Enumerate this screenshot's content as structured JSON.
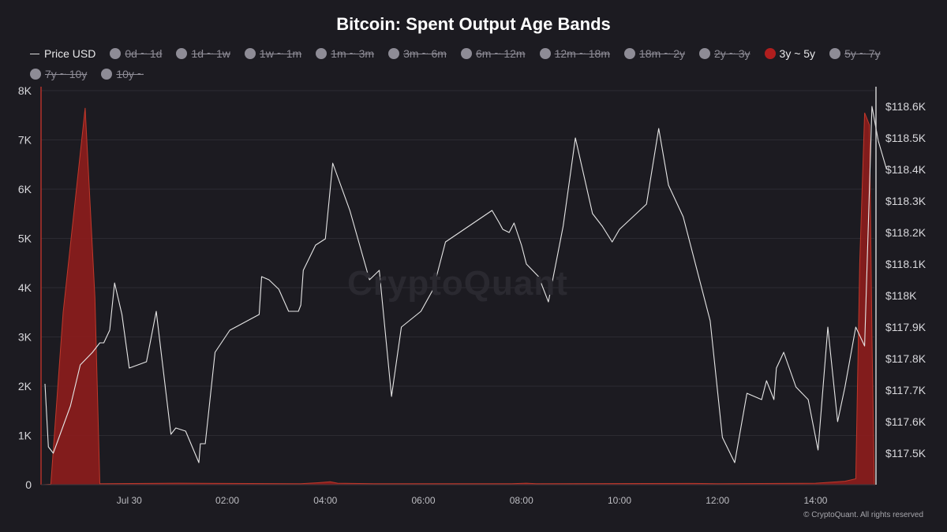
{
  "title": "Bitcoin: Spent Output Age Bands",
  "watermark": "CryptoQuant",
  "copyright": "© CryptoQuant. All rights reserved",
  "legend": [
    {
      "label": "Price USD",
      "kind": "line",
      "active": true
    },
    {
      "label": "0d ~ 1d",
      "kind": "dot",
      "active": false
    },
    {
      "label": "1d ~ 1w",
      "kind": "dot",
      "active": false
    },
    {
      "label": "1w ~ 1m",
      "kind": "dot",
      "active": false
    },
    {
      "label": "1m ~ 3m",
      "kind": "dot",
      "active": false
    },
    {
      "label": "3m ~ 6m",
      "kind": "dot",
      "active": false
    },
    {
      "label": "6m ~ 12m",
      "kind": "dot",
      "active": false
    },
    {
      "label": "12m ~ 18m",
      "kind": "dot",
      "active": false
    },
    {
      "label": "18m ~ 2y",
      "kind": "dot",
      "active": false
    },
    {
      "label": "2y ~ 3y",
      "kind": "dot",
      "active": false
    },
    {
      "label": "3y ~ 5y",
      "kind": "dot",
      "active": true,
      "color": "#b01e1e"
    },
    {
      "label": "5y ~ 7y",
      "kind": "dot",
      "active": false
    },
    {
      "label": "7y ~ 10y",
      "kind": "dot",
      "active": false
    },
    {
      "label": "10y ~",
      "kind": "dot",
      "active": false
    }
  ],
  "colors": {
    "background": "#1c1b21",
    "price_line": "#e6e6e6",
    "area_fill": "#8b1c1c",
    "area_stroke": "#c0392b",
    "grid": "#2c2b32",
    "axis": "#cfcfcf"
  },
  "chart_data": {
    "type": "line",
    "title": "Bitcoin: Spent Output Age Bands",
    "x_unit": "hours since Jul 30 00:00",
    "xlim": [
      -1.8,
      15.2
    ],
    "x_ticks": [
      {
        "value": 0,
        "label": "Jul 30"
      },
      {
        "value": 2,
        "label": "02:00"
      },
      {
        "value": 4,
        "label": "04:00"
      },
      {
        "value": 6,
        "label": "06:00"
      },
      {
        "value": 8,
        "label": "08:00"
      },
      {
        "value": 10,
        "label": "10:00"
      },
      {
        "value": 12,
        "label": "12:00"
      },
      {
        "value": 14,
        "label": "14:00"
      }
    ],
    "y_left": {
      "min": 0,
      "max": 8000,
      "ticks": [
        "0",
        "1K",
        "2K",
        "3K",
        "4K",
        "5K",
        "6K",
        "7K",
        "8K"
      ]
    },
    "y_right": {
      "min": 117400,
      "max": 118650,
      "ticks": [
        {
          "value": 117500,
          "label": "$117.5K"
        },
        {
          "value": 117600,
          "label": "$117.6K"
        },
        {
          "value": 117700,
          "label": "$117.7K"
        },
        {
          "value": 117800,
          "label": "$117.8K"
        },
        {
          "value": 117900,
          "label": "$117.9K"
        },
        {
          "value": 118000,
          "label": "$118K"
        },
        {
          "value": 118100,
          "label": "$118.1K"
        },
        {
          "value": 118200,
          "label": "$118.2K"
        },
        {
          "value": 118300,
          "label": "$118.3K"
        },
        {
          "value": 118400,
          "label": "$118.4K"
        },
        {
          "value": 118500,
          "label": "$118.5K"
        },
        {
          "value": 118600,
          "label": "$118.6K"
        }
      ]
    },
    "grid": true,
    "series": [
      {
        "name": "3y ~ 5y",
        "axis": "left",
        "kind": "area",
        "points": [
          [
            -1.75,
            0
          ],
          [
            -1.6,
            10
          ],
          [
            -1.35,
            3500
          ],
          [
            -0.9,
            7650
          ],
          [
            -0.7,
            3800
          ],
          [
            -0.6,
            20
          ],
          [
            1.0,
            30
          ],
          [
            3.5,
            20
          ],
          [
            3.85,
            40
          ],
          [
            4.1,
            60
          ],
          [
            4.25,
            30
          ],
          [
            5.0,
            20
          ],
          [
            7.8,
            20
          ],
          [
            8.1,
            30
          ],
          [
            8.3,
            20
          ],
          [
            11.5,
            25
          ],
          [
            12.0,
            20
          ],
          [
            14.0,
            30
          ],
          [
            14.6,
            70
          ],
          [
            14.82,
            120
          ],
          [
            14.9,
            4500
          ],
          [
            15.0,
            7550
          ],
          [
            15.1,
            7300
          ],
          [
            15.15,
            3000
          ],
          [
            15.2,
            0
          ]
        ]
      },
      {
        "name": "Price USD",
        "axis": "right",
        "kind": "line",
        "points": [
          [
            -1.72,
            117.72
          ],
          [
            -1.65,
            117.52
          ],
          [
            -1.55,
            117.5
          ],
          [
            -1.2,
            117.65
          ],
          [
            -1.0,
            117.78
          ],
          [
            -0.75,
            117.82
          ],
          [
            -0.6,
            117.85
          ],
          [
            -0.52,
            117.85
          ],
          [
            -0.4,
            117.89
          ],
          [
            -0.3,
            118.04
          ],
          [
            -0.15,
            117.94
          ],
          [
            0.0,
            117.77
          ],
          [
            0.35,
            117.79
          ],
          [
            0.55,
            117.95
          ],
          [
            0.85,
            117.56
          ],
          [
            0.95,
            117.58
          ],
          [
            1.15,
            117.57
          ],
          [
            1.42,
            117.47
          ],
          [
            1.45,
            117.53
          ],
          [
            1.55,
            117.53
          ],
          [
            1.75,
            117.82
          ],
          [
            2.05,
            117.89
          ],
          [
            2.65,
            117.94
          ],
          [
            2.7,
            118.06
          ],
          [
            2.85,
            118.05
          ],
          [
            3.05,
            118.02
          ],
          [
            3.25,
            117.95
          ],
          [
            3.45,
            117.95
          ],
          [
            3.5,
            117.97
          ],
          [
            3.55,
            118.08
          ],
          [
            3.8,
            118.16
          ],
          [
            4.0,
            118.18
          ],
          [
            4.15,
            118.42
          ],
          [
            4.5,
            118.27
          ],
          [
            4.9,
            118.05
          ],
          [
            5.1,
            118.08
          ],
          [
            5.35,
            117.68
          ],
          [
            5.55,
            117.9
          ],
          [
            5.95,
            117.95
          ],
          [
            6.2,
            118.02
          ],
          [
            6.45,
            118.17
          ],
          [
            7.4,
            118.27
          ],
          [
            7.55,
            118.23
          ],
          [
            7.62,
            118.21
          ],
          [
            7.75,
            118.2
          ],
          [
            7.85,
            118.23
          ],
          [
            8.0,
            118.16
          ],
          [
            8.1,
            118.1
          ],
          [
            8.35,
            118.06
          ],
          [
            8.55,
            117.98
          ],
          [
            8.85,
            118.22
          ],
          [
            9.1,
            118.5
          ],
          [
            9.45,
            118.26
          ],
          [
            9.65,
            118.22
          ],
          [
            9.85,
            118.17
          ],
          [
            10.0,
            118.21
          ],
          [
            10.55,
            118.29
          ],
          [
            10.8,
            118.53
          ],
          [
            11.0,
            118.35
          ],
          [
            11.3,
            118.25
          ],
          [
            11.85,
            117.92
          ],
          [
            12.1,
            117.55
          ],
          [
            12.35,
            117.47
          ],
          [
            12.6,
            117.69
          ],
          [
            12.9,
            117.67
          ],
          [
            13.0,
            117.73
          ],
          [
            13.15,
            117.67
          ],
          [
            13.2,
            117.77
          ],
          [
            13.35,
            117.82
          ],
          [
            13.6,
            117.71
          ],
          [
            13.85,
            117.67
          ],
          [
            14.05,
            117.51
          ],
          [
            14.25,
            117.9
          ],
          [
            14.45,
            117.6
          ],
          [
            14.6,
            117.71
          ],
          [
            14.82,
            117.9
          ],
          [
            15.0,
            117.84
          ],
          [
            15.15,
            118.6
          ],
          [
            15.28,
            118.49
          ],
          [
            15.45,
            118.4
          ]
        ],
        "y_unit": "thousand USD"
      }
    ]
  }
}
